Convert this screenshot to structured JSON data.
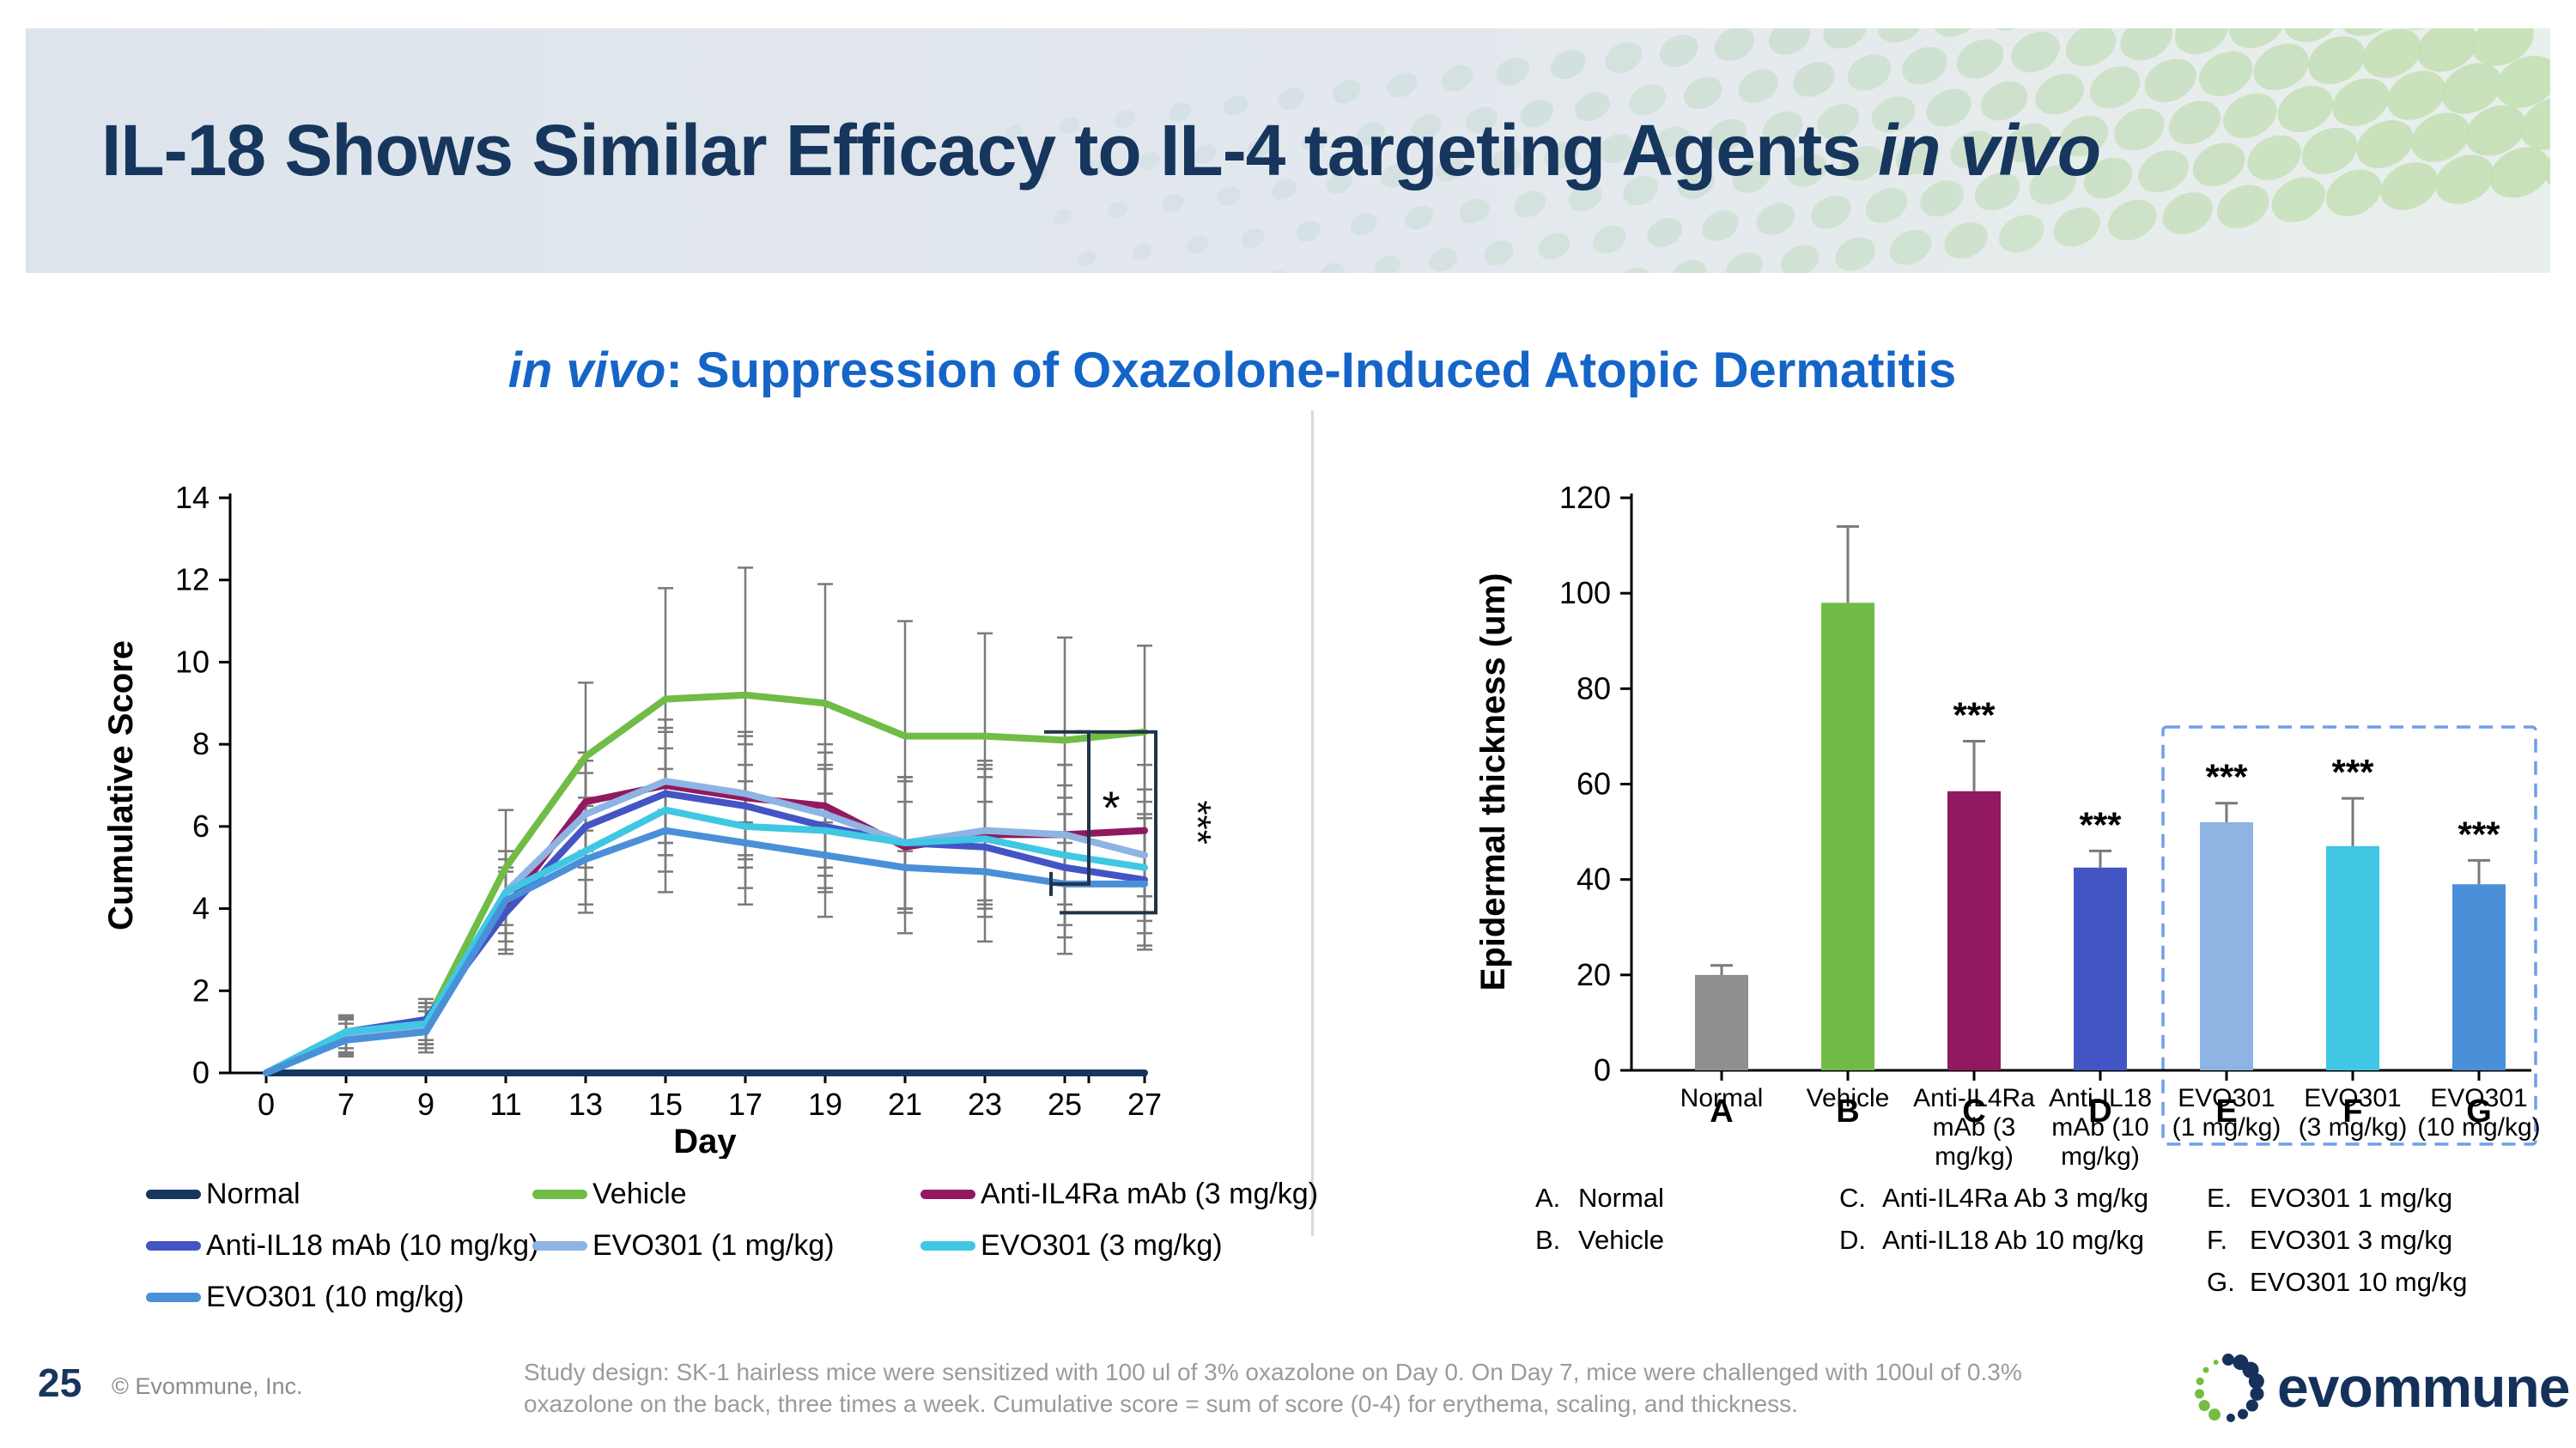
{
  "slide": {
    "title_main": "IL-18 Shows Similar Efficacy to IL-4 targeting Agents",
    "title_italic": "in vivo",
    "subtitle_italic": "in vivo",
    "subtitle_rest": ": Suppression of Oxazolone-Induced Atopic Dermatitis",
    "page_number": "25",
    "copyright": "© Evommune, Inc.",
    "footnote_line1": "Study design: SK-1 hairless mice were sensitized with 100 ul of 3% oxazolone on Day 0. On Day 7, mice were challenged with 100ul of 0.3%",
    "footnote_line2": "oxazolone on the back, three times a week. Cumulative score = sum of score (0-4) for erythema, scaling, and thickness.",
    "logo_text": "evommune"
  },
  "colors": {
    "title_navy": "#16365d",
    "subtitle_blue": "#1565c8",
    "divider": "#d9d9d9",
    "error_bar": "#7a7a7a",
    "annotation": "#233449",
    "highlight_box": "#6f9fe8",
    "logo_navy": "#16325c",
    "logo_green": "#76bc43"
  },
  "chart_data": [
    {
      "type": "line",
      "title": "",
      "xlabel": "Day",
      "ylabel": "Cumulative Score",
      "x": [
        0,
        7,
        9,
        11,
        13,
        15,
        17,
        19,
        21,
        23,
        25,
        27
      ],
      "ylim": [
        0,
        14
      ],
      "yticks": [
        0,
        2,
        4,
        6,
        8,
        10,
        12,
        14
      ],
      "grid": false,
      "legend_position": "below",
      "series": [
        {
          "name": "Normal",
          "color": "#17365d",
          "values": [
            0,
            0,
            0,
            0,
            0,
            0,
            0,
            0,
            0,
            0,
            0,
            0
          ],
          "err": [
            0,
            0,
            0,
            0,
            0,
            0,
            0,
            0,
            0,
            0,
            0,
            0
          ]
        },
        {
          "name": "Vehicle",
          "color": "#71bc46",
          "values": [
            0,
            0.9,
            1.2,
            5.0,
            7.7,
            9.1,
            9.2,
            9.0,
            8.2,
            8.2,
            8.1,
            8.3
          ],
          "err": [
            0,
            0.45,
            0.5,
            1.4,
            1.8,
            2.7,
            3.1,
            2.9,
            2.8,
            2.5,
            2.5,
            2.1
          ]
        },
        {
          "name": "Anti-IL4Ra mAb (3 mg/kg)",
          "color": "#92185f",
          "values": [
            0,
            0.9,
            1.2,
            4.0,
            6.6,
            7.0,
            6.7,
            6.5,
            5.5,
            5.8,
            5.8,
            5.9
          ],
          "err": [
            0,
            0.4,
            0.5,
            1.0,
            1.2,
            1.4,
            1.5,
            1.5,
            1.6,
            1.7,
            1.7,
            1.6
          ]
        },
        {
          "name": "Anti-IL18 mAb (10 mg/kg)",
          "color": "#4355c4",
          "values": [
            0,
            1.0,
            1.3,
            3.9,
            6.0,
            6.8,
            6.5,
            6.0,
            5.6,
            5.5,
            5.0,
            4.7
          ],
          "err": [
            0,
            0.4,
            0.5,
            1.0,
            1.3,
            1.5,
            1.5,
            1.5,
            1.6,
            1.7,
            1.7,
            1.6
          ]
        },
        {
          "name": "EVO301 (1 mg/kg)",
          "color": "#8db4e2",
          "values": [
            0,
            0.9,
            1.1,
            4.4,
            6.3,
            7.1,
            6.8,
            6.3,
            5.6,
            5.9,
            5.8,
            5.3
          ],
          "err": [
            0,
            0.4,
            0.5,
            1.0,
            1.3,
            1.5,
            1.5,
            1.5,
            1.6,
            1.7,
            1.7,
            1.6
          ]
        },
        {
          "name": "EVO301 (3 mg/kg)",
          "color": "#3fc7e3",
          "values": [
            0,
            1.0,
            1.2,
            4.4,
            5.4,
            6.4,
            6.0,
            5.9,
            5.6,
            5.7,
            5.3,
            5.0
          ],
          "err": [
            0,
            0.4,
            0.5,
            1.0,
            1.3,
            1.5,
            1.5,
            1.5,
            1.6,
            1.7,
            1.7,
            1.6
          ]
        },
        {
          "name": "EVO301 (10 mg/kg)",
          "color": "#4a90d9",
          "values": [
            0,
            0.8,
            1.0,
            4.2,
            5.2,
            5.9,
            5.6,
            5.3,
            5.0,
            4.9,
            4.6,
            4.6
          ],
          "err": [
            0,
            0.4,
            0.5,
            1.0,
            1.3,
            1.5,
            1.5,
            1.5,
            1.6,
            1.7,
            1.7,
            1.6
          ]
        }
      ],
      "annotations": [
        {
          "label": "*",
          "y_top": 8.3,
          "y_bottom": 4.6
        },
        {
          "label": "***",
          "y_top": 8.3,
          "y_bottom": 3.9
        }
      ]
    },
    {
      "type": "bar",
      "title": "",
      "xlabel": "",
      "ylabel": "Epidermal thickness (um)",
      "ylim": [
        0,
        120
      ],
      "yticks": [
        0,
        20,
        40,
        60,
        80,
        100,
        120
      ],
      "grid": false,
      "categories": [
        "Normal",
        "Vehicle",
        "Anti-IL4Ra mAb (3 mg/kg)",
        "Anti-IL18 mAb (10 mg/kg)",
        "EVO301 (1 mg/kg)",
        "EVO301 (3 mg/kg)",
        "EVO301 (10 mg/kg)"
      ],
      "labels_wrapped": [
        [
          "Normal"
        ],
        [
          "Vehicle"
        ],
        [
          "Anti-IL4Ra",
          "mAb (3",
          "mg/kg)"
        ],
        [
          "Anti-IL18",
          "mAb (10",
          "mg/kg)"
        ],
        [
          "EVO301",
          "(1 mg/kg)"
        ],
        [
          "EVO301",
          "(3 mg/kg)"
        ],
        [
          "EVO301",
          "(10 mg/kg)"
        ]
      ],
      "letters": [
        "A",
        "B",
        "C",
        "D",
        "E",
        "F",
        "G"
      ],
      "values": [
        20,
        98,
        58.5,
        42.5,
        52,
        47,
        39
      ],
      "errors": [
        2,
        16,
        10.5,
        3.5,
        4,
        10,
        5
      ],
      "sig": [
        "",
        "",
        "***",
        "***",
        "***",
        "***",
        "***"
      ],
      "bar_colors": [
        "#8f8f8f",
        "#71bc46",
        "#92185f",
        "#4355c4",
        "#8db4e2",
        "#3fc7e3",
        "#4a90d9"
      ],
      "highlight_box": {
        "from_index": 4,
        "to_index": 6
      }
    }
  ],
  "legend_left": {
    "items": [
      {
        "label": "Normal",
        "color": "#17365d"
      },
      {
        "label": "Vehicle",
        "color": "#71bc46"
      },
      {
        "label": "Anti-IL4Ra mAb (3 mg/kg)",
        "color": "#92185f"
      },
      {
        "label": "Anti-IL18 mAb (10 mg/kg)",
        "color": "#4355c4"
      },
      {
        "label": "EVO301 (1 mg/kg)",
        "color": "#8db4e2"
      },
      {
        "label": "EVO301 (3 mg/kg)",
        "color": "#3fc7e3"
      },
      {
        "label": "EVO301 (10 mg/kg)",
        "color": "#4a90d9"
      }
    ]
  },
  "legend_right": {
    "items": [
      {
        "letter": "A.",
        "label": "Normal",
        "col": 0
      },
      {
        "letter": "B.",
        "label": "Vehicle",
        "col": 0
      },
      {
        "letter": "C.",
        "label": "Anti-IL4Ra Ab 3 mg/kg",
        "col": 1
      },
      {
        "letter": "D.",
        "label": "Anti-IL18 Ab 10 mg/kg",
        "col": 1
      },
      {
        "letter": "E.",
        "label": "EVO301 1 mg/kg",
        "col": 2
      },
      {
        "letter": "F.",
        "label": "EVO301 3 mg/kg",
        "col": 2
      },
      {
        "letter": "G.",
        "label": "EVO301 10 mg/kg",
        "col": 2
      }
    ]
  }
}
